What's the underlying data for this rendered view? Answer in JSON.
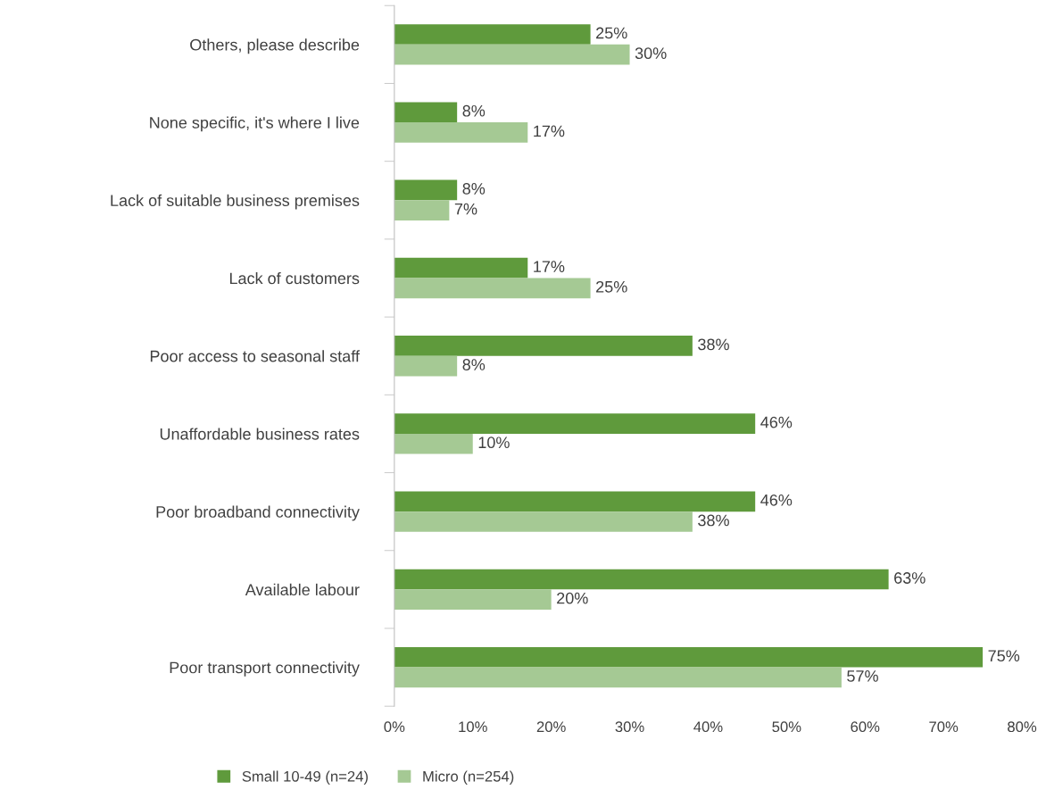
{
  "chart_data": {
    "type": "bar",
    "orientation": "horizontal",
    "categories": [
      "Others, please describe",
      "None specific, it's where I live",
      "Lack of suitable business premises",
      "Lack of customers",
      "Poor access to seasonal staff",
      "Unaffordable business rates",
      "Poor broadband connectivity",
      "Available labour",
      "Poor transport connectivity"
    ],
    "series": [
      {
        "name": "Small 10-49 (n=24)",
        "color": "#5f9a3c",
        "values": [
          25,
          8,
          8,
          17,
          38,
          46,
          46,
          63,
          75
        ],
        "value_labels": [
          "25%",
          "8%",
          "8%",
          "17%",
          "38%",
          "46%",
          "46%",
          "63%",
          "75%"
        ]
      },
      {
        "name": "Micro (n=254)",
        "color": "#a5c994",
        "values": [
          30,
          17,
          7,
          25,
          8,
          10,
          38,
          20,
          57
        ],
        "value_labels": [
          "30%",
          "17%",
          "7%",
          "25%",
          "8%",
          "10%",
          "38%",
          "20%",
          "57%"
        ]
      }
    ],
    "xlim": [
      0,
      80
    ],
    "xticks": [
      {
        "value": 0,
        "label": "0%"
      },
      {
        "value": 10,
        "label": "10%"
      },
      {
        "value": 20,
        "label": "20%"
      },
      {
        "value": 30,
        "label": "30%"
      },
      {
        "value": 40,
        "label": "40%"
      },
      {
        "value": 50,
        "label": "50%"
      },
      {
        "value": 60,
        "label": "60%"
      },
      {
        "value": 70,
        "label": "70%"
      },
      {
        "value": 80,
        "label": "80%"
      }
    ],
    "grid": false,
    "legend": "bottom"
  }
}
